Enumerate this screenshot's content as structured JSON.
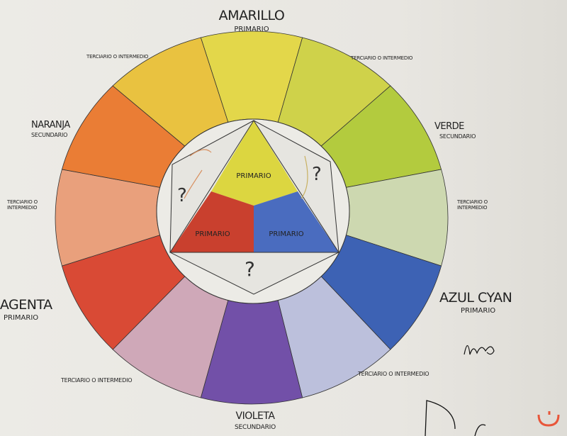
{
  "labels": {
    "amarillo": {
      "name": "AMARILLO",
      "type": "PRIMARIO"
    },
    "verde": {
      "name": "VERDE",
      "type": "SECUNDARIO"
    },
    "azul": {
      "name": "AZUL CYAN",
      "type": "PRIMARIO"
    },
    "violeta": {
      "name": "VIOLETA",
      "type": "SECUNDARIO"
    },
    "magenta": {
      "name": "MAGENTA",
      "type": "PRIMARIO"
    },
    "naranja": {
      "name": "NARANJA",
      "type": "SECUNDARIO"
    },
    "terciario": "TERCIARIO O INTERMEDIO",
    "terciario_l1": "TERCIARIO O",
    "terciario_l2": "INTERMEDIO"
  },
  "inner": {
    "top": "PRIMARIO",
    "left": "PRIMARIO",
    "right": "PRIMARIO",
    "question": "?"
  },
  "signature": "bribaño",
  "segments": [
    {
      "name": "amarillo",
      "color": "#e3d74a"
    },
    {
      "name": "terciario-amarillo-verde",
      "color": "#cfd24a"
    },
    {
      "name": "verde",
      "color": "#b3cb3e"
    },
    {
      "name": "terciario-verde-azul",
      "color": "#cdd8b0"
    },
    {
      "name": "azul-cyan",
      "color": "#3d62b4"
    },
    {
      "name": "terciario-azul-violeta",
      "color": "#bcc0dc"
    },
    {
      "name": "violeta",
      "color": "#7250a8"
    },
    {
      "name": "terciario-violeta-magenta",
      "color": "#cfa8b8"
    },
    {
      "name": "magenta",
      "color": "#d94a35"
    },
    {
      "name": "terciario-magenta-naranja",
      "color": "#e9a07c"
    },
    {
      "name": "naranja",
      "color": "#ea7d35"
    },
    {
      "name": "terciario-naranja-amarillo",
      "color": "#e9c240"
    }
  ],
  "colors": {
    "inner_yellow": "#dcd640",
    "inner_red": "#c9402e",
    "inner_blue": "#4a6cbf",
    "logo": "#e8563a"
  }
}
